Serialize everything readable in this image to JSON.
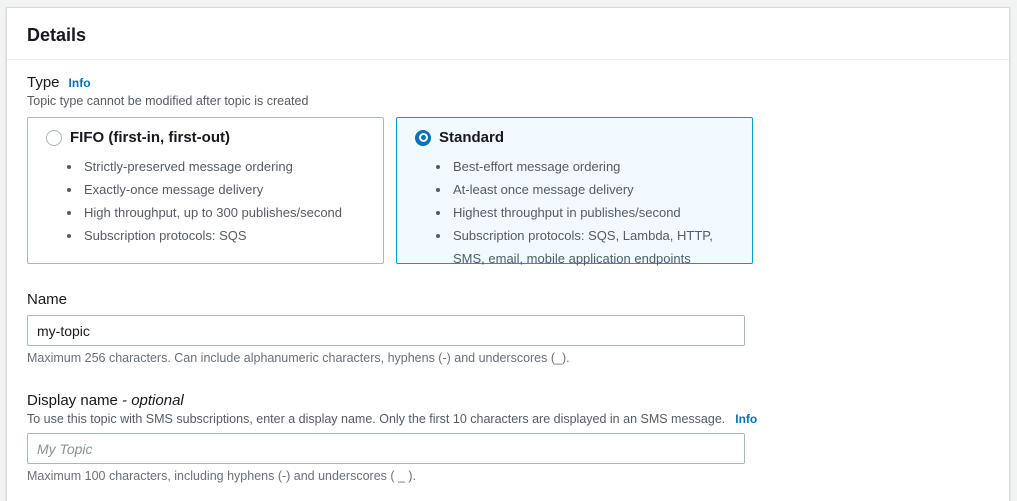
{
  "panel": {
    "title": "Details"
  },
  "type_field": {
    "label": "Type",
    "info_label": "Info",
    "description": "Topic type cannot be modified after topic is created",
    "options": [
      {
        "title": "FIFO (first-in, first-out)",
        "selected": false,
        "bullets": [
          "Strictly-preserved message ordering",
          "Exactly-once message delivery",
          "High throughput, up to 300 publishes/second",
          "Subscription protocols: SQS"
        ]
      },
      {
        "title": "Standard",
        "selected": true,
        "bullets": [
          "Best-effort message ordering",
          "At-least once message delivery",
          "Highest throughput in publishes/second",
          "Subscription protocols: SQS, Lambda, HTTP, SMS, email, mobile application endpoints"
        ]
      }
    ]
  },
  "name_field": {
    "label": "Name",
    "value": "my-topic",
    "constraint": "Maximum 256 characters. Can include alphanumeric characters, hyphens (-) and underscores (_)."
  },
  "display_name_field": {
    "label": "Display name",
    "optional_label": "- optional",
    "description": "To use this topic with SMS subscriptions, enter a display name. Only the first 10 characters are displayed in an SMS message.",
    "info_label": "Info",
    "placeholder": "My Topic",
    "constraint": "Maximum 100 characters, including hyphens (-) and underscores ( _ )."
  },
  "colors": {
    "accent_blue": "#0073bb",
    "selected_card_border": "#00a1c9",
    "selected_card_bg": "#f1faff",
    "panel_bg": "#ffffff",
    "page_bg": "#f2f3f3"
  }
}
